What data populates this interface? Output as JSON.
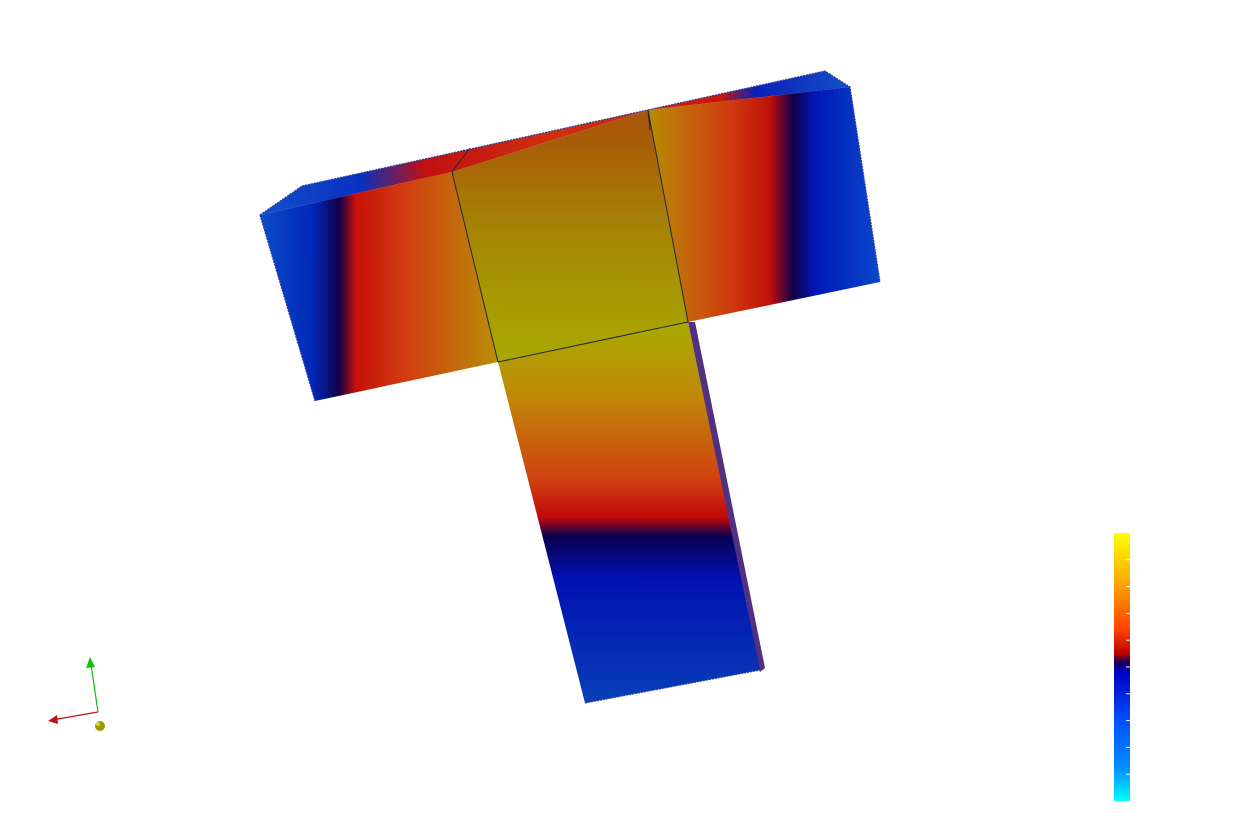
{
  "scene": {
    "model": "t-shaped-mesh",
    "field_colormap": [
      "#00ffff",
      "#0080ff",
      "#0000c0",
      "#00004d",
      "#ff0000",
      "#ff8000",
      "#ffff00"
    ],
    "colors": {
      "background": "#ffffff",
      "edge": "#1e2a3a",
      "outline": "#2a3aa0"
    }
  },
  "colorbar": {
    "orientation": "vertical",
    "ticks": 11,
    "stops": [
      {
        "offset": 0.0,
        "color": "#ffff00"
      },
      {
        "offset": 0.17,
        "color": "#ffb000"
      },
      {
        "offset": 0.36,
        "color": "#ff4000"
      },
      {
        "offset": 0.45,
        "color": "#c00000"
      },
      {
        "offset": 0.48,
        "color": "#1a0050"
      },
      {
        "offset": 0.52,
        "color": "#0000c0"
      },
      {
        "offset": 0.7,
        "color": "#0050ff"
      },
      {
        "offset": 0.88,
        "color": "#0090ff"
      },
      {
        "offset": 1.0,
        "color": "#00ffff"
      }
    ]
  },
  "orientation_axes": {
    "x_color": "#c01010",
    "y_color": "#10c010",
    "z_color": "#b0b000"
  }
}
